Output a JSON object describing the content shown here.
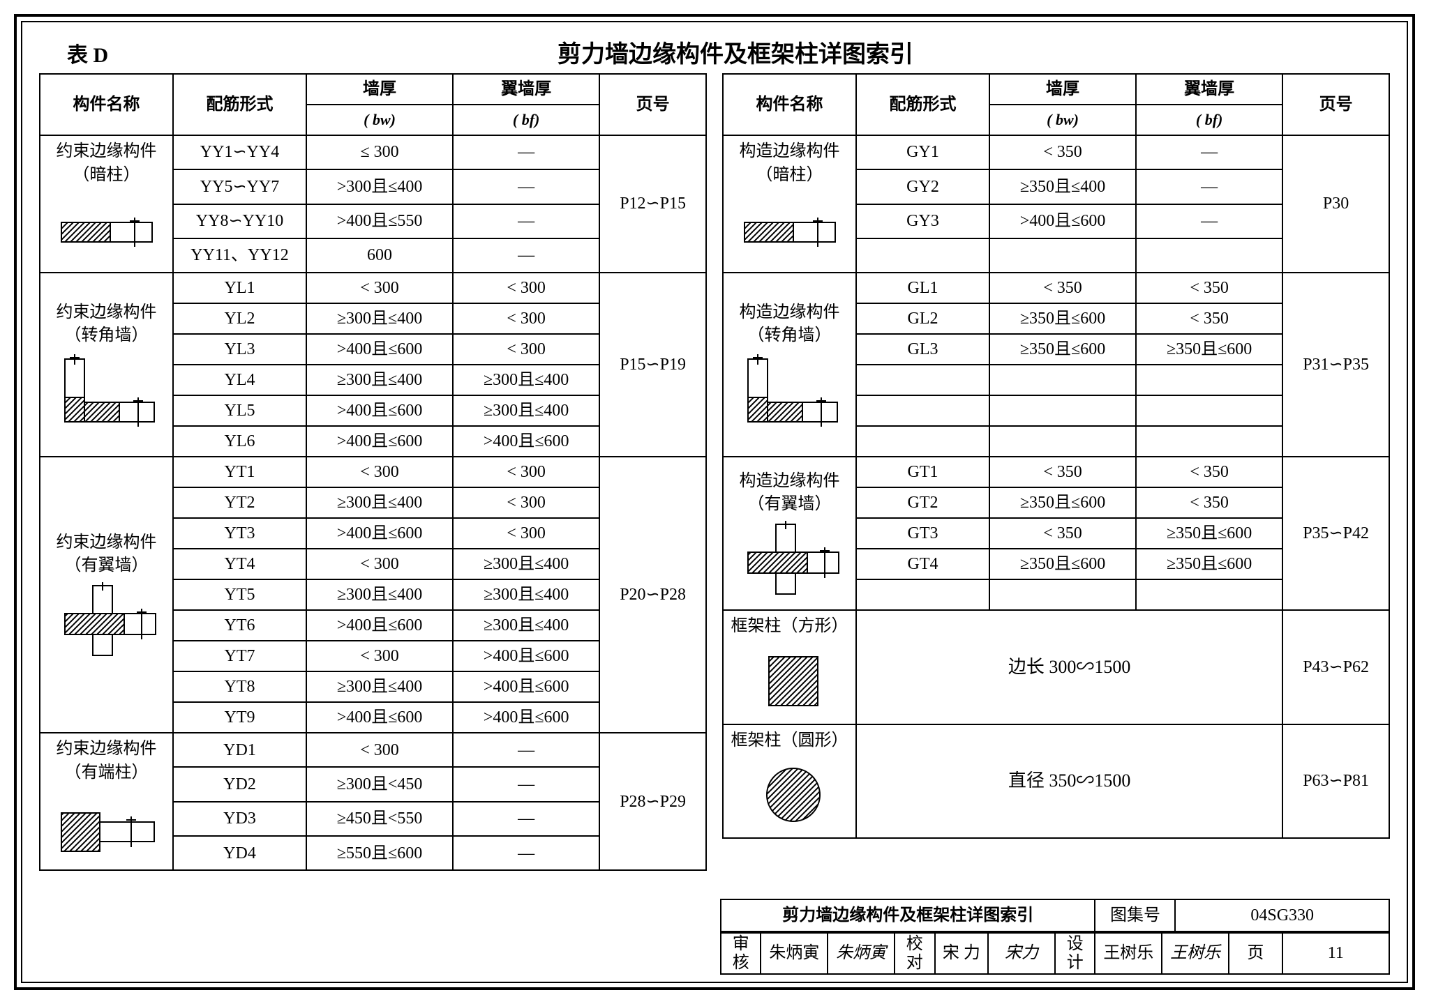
{
  "header": {
    "tableLabel": "表 D",
    "title": "剪力墙边缘构件及框架柱详图索引"
  },
  "cols": {
    "c1": "构件名称",
    "c2": "配筋形式",
    "c3top": "墙厚",
    "c3bot": "( bw)",
    "c4top": "翼墙厚",
    "c4bot": "( bf)",
    "c5": "页号"
  },
  "left": [
    {
      "name": "约束边缘构件\n（暗柱）",
      "icon": "yy",
      "rows": [
        {
          "a": "YY1∽YY4",
          "b": "≤ 300",
          "c": "—"
        },
        {
          "a": "YY5∽YY7",
          "b": ">300且≤400",
          "c": "—"
        },
        {
          "a": "YY8∽YY10",
          "b": ">400且≤550",
          "c": "—"
        },
        {
          "a": "YY11、YY12",
          "b": "600",
          "c": "—"
        }
      ],
      "page": "P12∽P15"
    },
    {
      "name": "约束边缘构件\n（转角墙）",
      "icon": "yl",
      "rows": [
        {
          "a": "YL1",
          "b": "< 300",
          "c": "< 300"
        },
        {
          "a": "YL2",
          "b": "≥300且≤400",
          "c": "< 300"
        },
        {
          "a": "YL3",
          "b": ">400且≤600",
          "c": "< 300"
        },
        {
          "a": "YL4",
          "b": "≥300且≤400",
          "c": "≥300且≤400"
        },
        {
          "a": "YL5",
          "b": ">400且≤600",
          "c": "≥300且≤400"
        },
        {
          "a": "YL6",
          "b": ">400且≤600",
          "c": ">400且≤600"
        }
      ],
      "page": "P15∽P19"
    },
    {
      "name": "约束边缘构件\n（有翼墙）",
      "icon": "yt",
      "rows": [
        {
          "a": "YT1",
          "b": "< 300",
          "c": "< 300"
        },
        {
          "a": "YT2",
          "b": "≥300且≤400",
          "c": "< 300"
        },
        {
          "a": "YT3",
          "b": ">400且≤600",
          "c": "< 300"
        },
        {
          "a": "YT4",
          "b": "< 300",
          "c": "≥300且≤400"
        },
        {
          "a": "YT5",
          "b": "≥300且≤400",
          "c": "≥300且≤400"
        },
        {
          "a": "YT6",
          "b": ">400且≤600",
          "c": "≥300且≤400"
        },
        {
          "a": "YT7",
          "b": "< 300",
          "c": ">400且≤600"
        },
        {
          "a": "YT8",
          "b": "≥300且≤400",
          "c": ">400且≤600"
        },
        {
          "a": "YT9",
          "b": ">400且≤600",
          "c": ">400且≤600"
        }
      ],
      "page": "P20∽P28"
    },
    {
      "name": "约束边缘构件\n（有端柱）",
      "icon": "yd",
      "rows": [
        {
          "a": "YD1",
          "b": "< 300",
          "c": "—"
        },
        {
          "a": "YD2",
          "b": "≥300且<450",
          "c": "—"
        },
        {
          "a": "YD3",
          "b": "≥450且<550",
          "c": "—"
        },
        {
          "a": "YD4",
          "b": "≥550且≤600",
          "c": "—"
        }
      ],
      "page": "P28∽P29"
    }
  ],
  "right": [
    {
      "name": "构造边缘构件\n（暗柱）",
      "icon": "gy",
      "rows": [
        {
          "a": "GY1",
          "b": "< 350",
          "c": "—"
        },
        {
          "a": "GY2",
          "b": "≥350且≤400",
          "c": "—"
        },
        {
          "a": "GY3",
          "b": ">400且≤600",
          "c": "—"
        },
        {
          "a": "",
          "b": "",
          "c": ""
        }
      ],
      "page": "P30"
    },
    {
      "name": "构造边缘构件\n（转角墙）",
      "icon": "gl",
      "rows": [
        {
          "a": "GL1",
          "b": "< 350",
          "c": "< 350"
        },
        {
          "a": "GL2",
          "b": "≥350且≤600",
          "c": "< 350"
        },
        {
          "a": "GL3",
          "b": "≥350且≤600",
          "c": "≥350且≤600"
        },
        {
          "a": "",
          "b": "",
          "c": ""
        },
        {
          "a": "",
          "b": "",
          "c": ""
        },
        {
          "a": "",
          "b": "",
          "c": ""
        }
      ],
      "page": "P31∽P35"
    },
    {
      "name": "构造边缘构件\n（有翼墙）",
      "icon": "gt",
      "rows": [
        {
          "a": "GT1",
          "b": "< 350",
          "c": "< 350"
        },
        {
          "a": "GT2",
          "b": "≥350且≤600",
          "c": "< 350"
        },
        {
          "a": "GT3",
          "b": "< 350",
          "c": "≥350且≤600"
        },
        {
          "a": "GT4",
          "b": "≥350且≤600",
          "c": "≥350且≤600"
        },
        {
          "a": "",
          "b": "",
          "c": ""
        }
      ],
      "page": "P35∽P42"
    },
    {
      "name": "框架柱（方形）",
      "icon": "sq",
      "span": "边长  300∽1500",
      "page": "P43∽P62"
    },
    {
      "name": "框架柱（圆形）",
      "icon": "ci",
      "span": "直径  350∽1500",
      "page": "P63∽P81"
    }
  ],
  "footer": {
    "bigTitle": "剪力墙边缘构件及框架柱详图索引",
    "tujihao": "图集号",
    "tujihaoVal": "04SG330",
    "shenhe": "审核",
    "shenheName": "朱炳寅",
    "shenheSig": "朱炳寅",
    "jiaodu": "校对",
    "jiaoduName": "宋 力",
    "jiaoduSig": "宋力",
    "sheji": "设计",
    "shejiName": "王树乐",
    "shejiSig": "王树乐",
    "ye": "页",
    "yeVal": "11"
  }
}
